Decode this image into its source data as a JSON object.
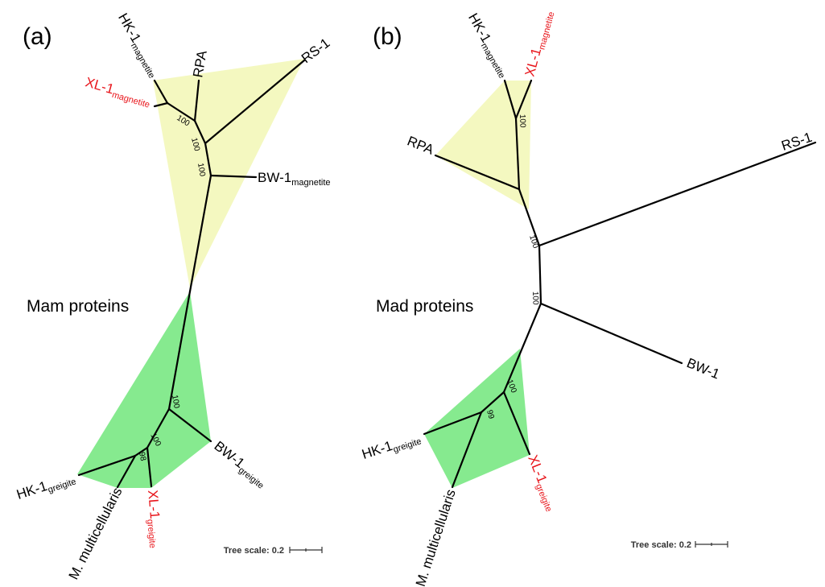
{
  "colors": {
    "magnetite_clade": "#f4f8c0",
    "greigite_clade": "#86ea8f",
    "highlight_text": "#e8141a",
    "normal_text": "#000000"
  },
  "panel_a": {
    "label": "(a)",
    "title": "Mam proteins",
    "leaves": {
      "hk1_mag": {
        "name": "HK-1",
        "sub": "magnetite"
      },
      "xl1_mag": {
        "name": "XL-1",
        "sub": "magnetite"
      },
      "rpa": {
        "name": "RPA",
        "sub": ""
      },
      "rs1": {
        "name": "RS-1",
        "sub": ""
      },
      "bw1_mag": {
        "name": "BW-1",
        "sub": "magnetite"
      },
      "bw1_gre": {
        "name": "BW-1",
        "sub": "greigite"
      },
      "hk1_gre": {
        "name": "HK-1",
        "sub": "greigite"
      },
      "mmult": {
        "name": "M. multicellularis",
        "sub": ""
      },
      "xl1_gre": {
        "name": "XL-1",
        "sub": "greigite"
      }
    },
    "bootstrap": {
      "b1": "100",
      "b2": "100",
      "b3": "100",
      "b4": "100",
      "b5": "100",
      "b6": "98"
    },
    "scale_label": "Tree scale: 0.2"
  },
  "panel_b": {
    "label": "(b)",
    "title": "Mad proteins",
    "leaves": {
      "hk1_mag": {
        "name": "HK-1",
        "sub": "magnetite"
      },
      "xl1_mag": {
        "name": "XL-1",
        "sub": "magnetite"
      },
      "rpa": {
        "name": "RPA",
        "sub": ""
      },
      "rs1": {
        "name": "RS-1",
        "sub": ""
      },
      "bw1": {
        "name": "BW-1",
        "sub": ""
      },
      "hk1_gre": {
        "name": "HK-1",
        "sub": "greigite"
      },
      "mmult": {
        "name": "M. multicellularis",
        "sub": ""
      },
      "xl1_gre": {
        "name": "XL-1",
        "sub": "greigite"
      }
    },
    "bootstrap": {
      "b1": "100",
      "b2": "100",
      "b3": "100",
      "b4": "100",
      "b5": "99"
    },
    "scale_label": "Tree scale: 0.2"
  }
}
